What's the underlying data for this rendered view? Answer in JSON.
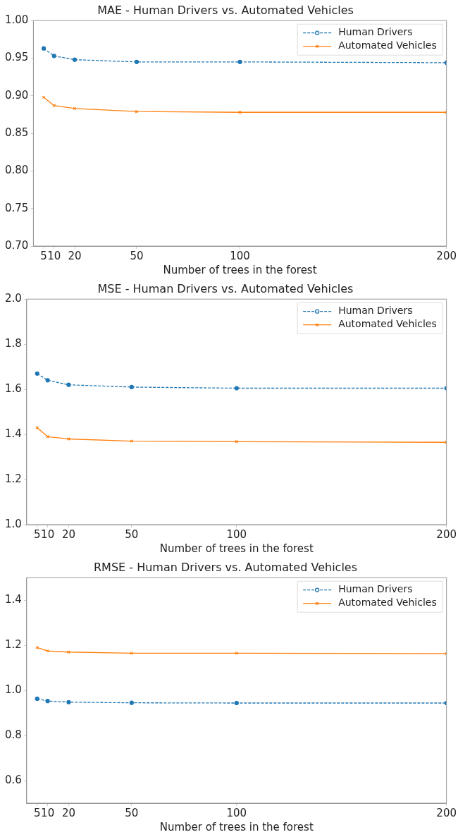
{
  "chart_data": [
    {
      "type": "line",
      "title": "MAE - Human Drivers vs. Automated Vehicles",
      "xlabel": "Number of trees in the forest",
      "x": [
        5,
        10,
        20,
        50,
        100,
        200
      ],
      "xlim": [
        0,
        200
      ],
      "xticks": [
        5,
        10,
        20,
        50,
        100,
        200
      ],
      "ylim": [
        0.7,
        1.0
      ],
      "yticks": [
        {
          "value": 0.7,
          "label": "0.70"
        },
        {
          "value": 0.75,
          "label": "0.75"
        },
        {
          "value": 0.8,
          "label": "0.80"
        },
        {
          "value": 0.85,
          "label": "0.85"
        },
        {
          "value": 0.9,
          "label": "0.90"
        },
        {
          "value": 0.95,
          "label": "0.95"
        },
        {
          "value": 1.0,
          "label": "1.00"
        }
      ],
      "grid": false,
      "legend": "top right",
      "series": [
        {
          "name": "Human Drivers",
          "color": "#1f77b4",
          "marker": "circle",
          "line_style": "dashed",
          "values": [
            0.963,
            0.953,
            0.948,
            0.945,
            0.945,
            0.944
          ]
        },
        {
          "name": "Automated Vehicles",
          "color": "#ff7f0e",
          "marker": "cross",
          "line_style": "solid",
          "values": [
            0.898,
            0.887,
            0.883,
            0.879,
            0.878,
            0.878
          ]
        }
      ]
    },
    {
      "type": "line",
      "title": "MSE - Human Drivers vs. Automated Vehicles",
      "xlabel": "Number of trees in the forest",
      "x": [
        5,
        10,
        20,
        50,
        100,
        200
      ],
      "xlim": [
        0,
        200
      ],
      "xticks": [
        5,
        10,
        20,
        50,
        100,
        200
      ],
      "ylim": [
        1.0,
        2.0
      ],
      "yticks": [
        {
          "value": 1.0,
          "label": "1.0"
        },
        1.2,
        1.4,
        1.6,
        1.8,
        {
          "value": 2.0,
          "label": "2.0"
        }
      ],
      "grid": false,
      "legend": "top right",
      "series": [
        {
          "name": "Human Drivers",
          "color": "#1f77b4",
          "marker": "circle",
          "line_style": "dashed",
          "values": [
            1.67,
            1.64,
            1.62,
            1.61,
            1.605,
            1.605
          ]
        },
        {
          "name": "Automated Vehicles",
          "color": "#ff7f0e",
          "marker": "cross",
          "line_style": "solid",
          "values": [
            1.43,
            1.39,
            1.38,
            1.37,
            1.368,
            1.365
          ]
        }
      ]
    },
    {
      "type": "line",
      "title": "RMSE - Human Drivers vs. Automated Vehicles",
      "xlabel": "Number of trees in the forest",
      "x": [
        5,
        10,
        20,
        50,
        100,
        200
      ],
      "xlim": [
        0,
        200
      ],
      "xticks": [
        5,
        10,
        20,
        50,
        100,
        200
      ],
      "ylim": [
        0.5,
        1.5
      ],
      "yticks": [
        0.6,
        0.8,
        {
          "value": 1.0,
          "label": "1.0"
        },
        1.2,
        1.4
      ],
      "grid": false,
      "legend": "top right",
      "series": [
        {
          "name": "Human Drivers",
          "color": "#1f77b4",
          "marker": "circle",
          "line_style": "dashed",
          "values": [
            0.963,
            0.953,
            0.948,
            0.945,
            0.944,
            0.944
          ]
        },
        {
          "name": "Automated Vehicles",
          "color": "#ff7f0e",
          "marker": "cross",
          "line_style": "solid",
          "values": [
            1.19,
            1.175,
            1.17,
            1.165,
            1.165,
            1.163
          ]
        }
      ]
    }
  ]
}
